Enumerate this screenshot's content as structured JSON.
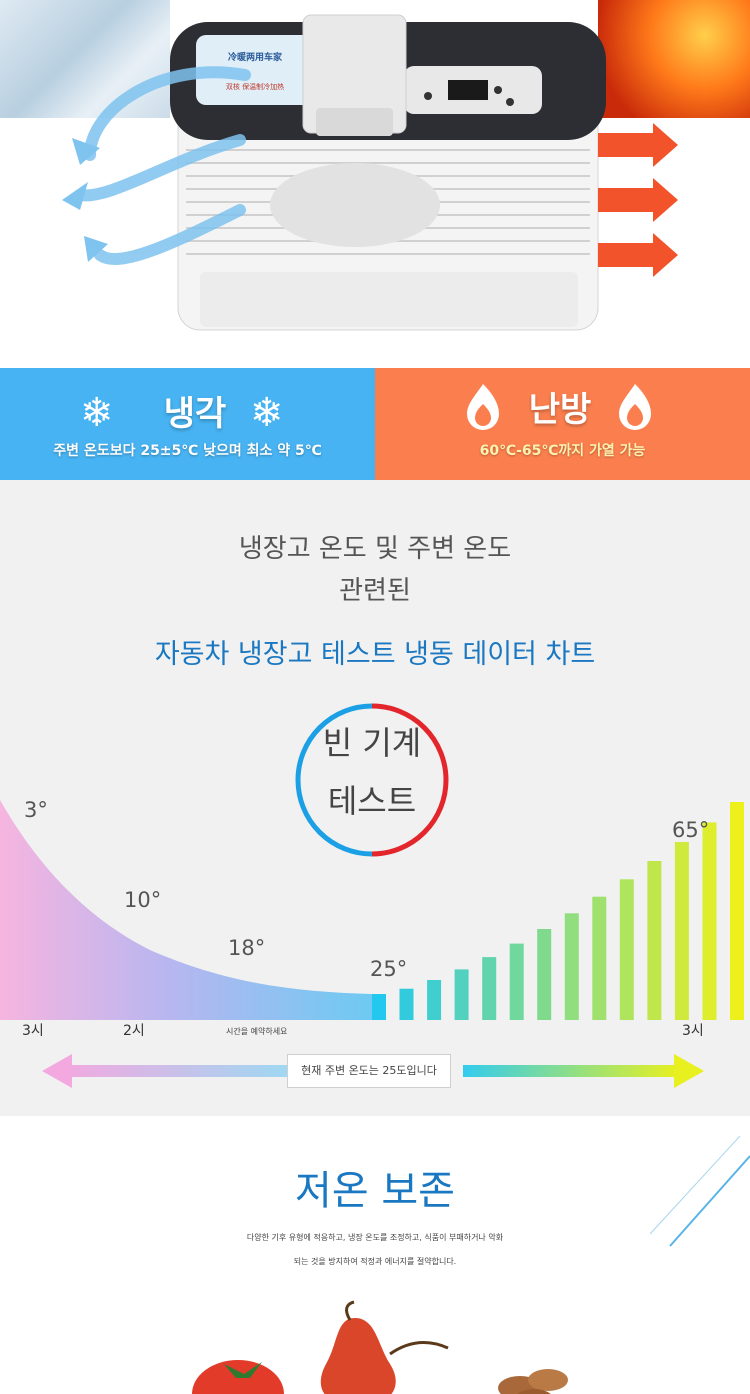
{
  "hero": {
    "lid_label_1": "冷暖两用车家",
    "lid_label_2": "双核 保温制冷加热"
  },
  "modes": {
    "cooling": {
      "title": "냉각",
      "desc": "주변 온도보다 25±5℃ 낮으며 최소 약 5℃",
      "color": "#47b3f2"
    },
    "heating": {
      "title": "난방",
      "desc": "60℃-65℃까지 가열 가능",
      "color": "#fb7f4e"
    }
  },
  "chart_section": {
    "heading_line1": "냉장고 온도 및 주변 온도",
    "heading_line2": "관련된",
    "heading_blue": "자동차 냉장고 테스트 냉동 데이터 차트",
    "badge_line1": "빈 기계",
    "badge_line2": "테스트",
    "ambient_note": "현재 주변 온도는 25도입니다",
    "small_note": "시간을 예약하세요"
  },
  "chart_data": {
    "type": "area",
    "title": "자동차 냉장고 테스트 냉동 데이터 차트",
    "points": [
      {
        "label": "3°",
        "value": 3
      },
      {
        "label": "10°",
        "value": 10
      },
      {
        "label": "18°",
        "value": 18
      },
      {
        "label": "25°",
        "value": 25
      },
      {
        "label": "65°",
        "value": 65
      }
    ],
    "time_labels": [
      "3시",
      "2시",
      "3시"
    ],
    "cooling_curve": "pink-to-blue gradient",
    "heating_bars": "cyan-to-yellow gradient"
  },
  "preservation": {
    "title": "저온 보존",
    "desc_line1": "다양한 기후 유형에 적응하고, 냉장 온도를 조정하고, 식품이 부패하거나 악화",
    "desc_line2": "되는 것을 방지하여 적정과 에너지를 절약합니다."
  }
}
